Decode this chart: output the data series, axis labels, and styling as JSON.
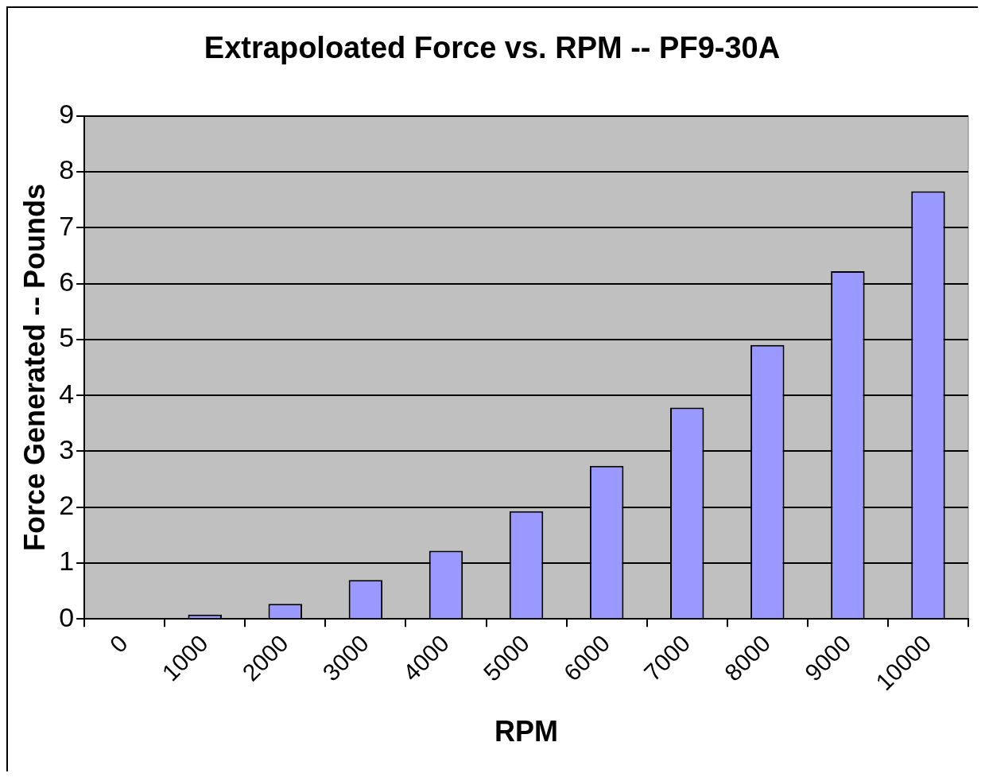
{
  "chart_data": {
    "type": "bar",
    "title": "Extrapoloated Force vs. RPM -- PF9-30A",
    "xlabel": "RPM",
    "ylabel": "Force Generated -- Pounds",
    "categories": [
      "0",
      "1000",
      "2000",
      "3000",
      "4000",
      "5000",
      "6000",
      "7000",
      "8000",
      "9000",
      "10000"
    ],
    "values": [
      0,
      0.08,
      0.27,
      0.7,
      1.22,
      1.93,
      2.74,
      3.78,
      4.9,
      6.22,
      7.65
    ],
    "color": "#9999ff",
    "ylim": [
      0,
      9
    ],
    "yticks": [
      0,
      1,
      2,
      3,
      4,
      5,
      6,
      7,
      8,
      9
    ],
    "grid": "y",
    "legend": false
  }
}
